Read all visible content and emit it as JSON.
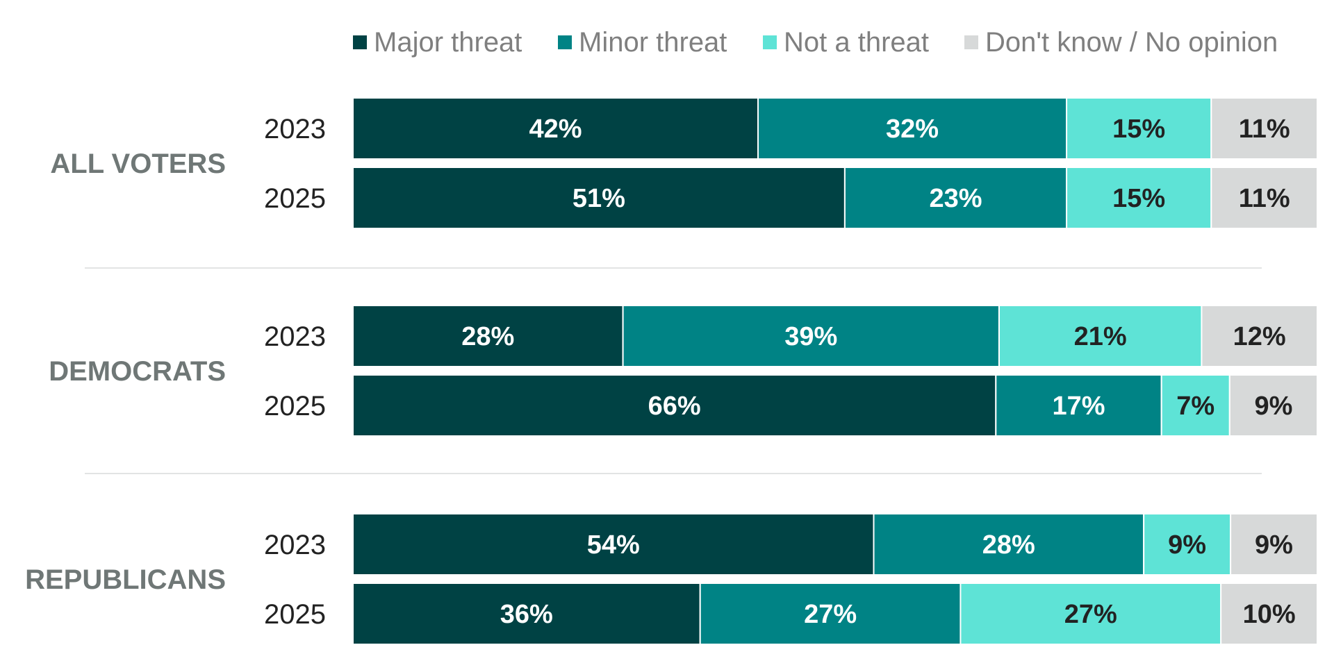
{
  "chart_data": {
    "type": "bar",
    "orientation": "horizontal",
    "stacked": true,
    "normalized": true,
    "title": "",
    "xlabel": "",
    "ylabel": "",
    "xlim": [
      0,
      100
    ],
    "unit": "%",
    "legend_placement": "top",
    "grid": false,
    "series": [
      {
        "name": "Major threat",
        "color": "#004244",
        "label_color": "#ffffff"
      },
      {
        "name": "Minor threat",
        "color": "#008385",
        "label_color": "#ffffff"
      },
      {
        "name": "Not a threat",
        "color": "#5ee3d6",
        "label_color": "#222222"
      },
      {
        "name": "Don't know / No opinion",
        "color": "#d7d9d9",
        "label_color": "#222222"
      }
    ],
    "groups": [
      {
        "name": "ALL VOTERS",
        "rows": [
          {
            "year": "2023",
            "values": [
              42,
              32,
              15,
              11
            ],
            "labels": [
              "42%",
              "32%",
              "15%",
              "11%"
            ]
          },
          {
            "year": "2025",
            "values": [
              51,
              23,
              15,
              11
            ],
            "labels": [
              "51%",
              "23%",
              "15%",
              "11%"
            ]
          }
        ]
      },
      {
        "name": "DEMOCRATS",
        "rows": [
          {
            "year": "2023",
            "values": [
              28,
              39,
              21,
              12
            ],
            "labels": [
              "28%",
              "39%",
              "21%",
              "12%"
            ]
          },
          {
            "year": "2025",
            "values": [
              66,
              17,
              7,
              9
            ],
            "labels": [
              "66%",
              "17%",
              "7%",
              "9%"
            ]
          }
        ]
      },
      {
        "name": "REPUBLICANS",
        "rows": [
          {
            "year": "2023",
            "values": [
              54,
              28,
              9,
              9
            ],
            "labels": [
              "54%",
              "28%",
              "9%",
              "9%"
            ]
          },
          {
            "year": "2025",
            "values": [
              36,
              27,
              27,
              10
            ],
            "labels": [
              "36%",
              "27%",
              "27%",
              "10%"
            ]
          }
        ]
      }
    ]
  }
}
